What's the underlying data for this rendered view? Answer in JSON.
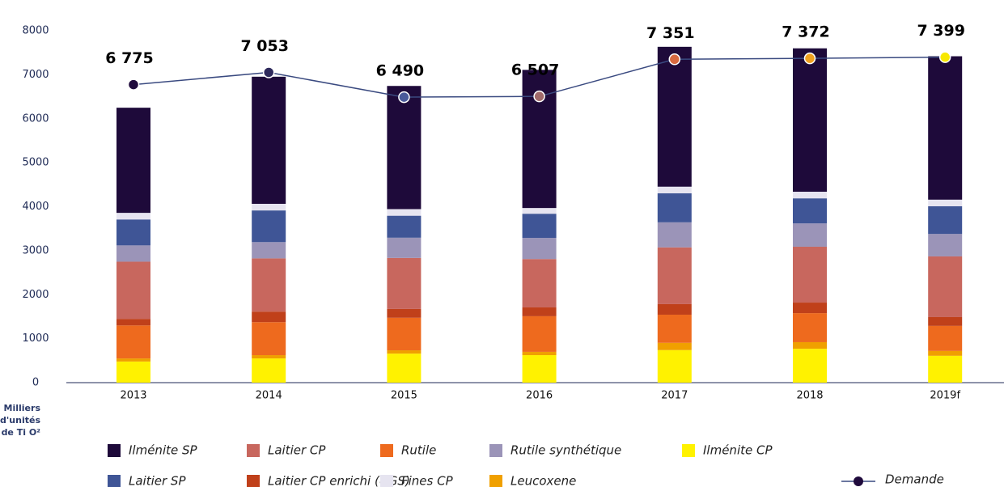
{
  "chart_data": {
    "type": "stacked_bar_line",
    "y_axis_label": [
      "Milliers",
      "d'unités",
      "de Ti O²"
    ],
    "categories": [
      "2013",
      "2014",
      "2015",
      "2016",
      "2017",
      "2018",
      "2019f"
    ],
    "ylim": [
      0,
      8000
    ],
    "yticks": [
      0,
      1000,
      2000,
      3000,
      4000,
      5000,
      6000,
      7000,
      8000
    ],
    "series": [
      {
        "name": "Ilménite CP",
        "color": "#fff200",
        "values": [
          480,
          550,
          660,
          625,
          740,
          770,
          610
        ]
      },
      {
        "name": "Leucoxene",
        "color": "#f0a000",
        "values": [
          70,
          75,
          75,
          75,
          165,
          150,
          110
        ]
      },
      {
        "name": "Rutile",
        "color": "#ee6a1e",
        "values": [
          750,
          750,
          740,
          810,
          640,
          660,
          570
        ]
      },
      {
        "name": "Laitier CP enrichi (UGS)",
        "color": "#c0401a",
        "values": [
          150,
          240,
          200,
          200,
          240,
          240,
          200
        ]
      },
      {
        "name": "Laitier CP",
        "color": "#c8675e",
        "values": [
          1300,
          1210,
          1160,
          1100,
          1290,
          1270,
          1380
        ]
      },
      {
        "name": "Rutile synthétique",
        "color": "#9b94b8",
        "values": [
          370,
          370,
          460,
          480,
          570,
          530,
          510
        ]
      },
      {
        "name": "Laitier SP",
        "color": "#3f5596",
        "values": [
          590,
          720,
          500,
          550,
          660,
          570,
          630
        ]
      },
      {
        "name": "Fines CP",
        "color": "#e6e4f0",
        "values": [
          150,
          150,
          150,
          130,
          150,
          150,
          150
        ]
      },
      {
        "name": "Ilménite SP",
        "color": "#1e0a3a",
        "values": [
          2390,
          2890,
          2800,
          3140,
          3180,
          3260,
          3260
        ]
      }
    ],
    "line": {
      "name": "Demande",
      "color": "#3a4a80",
      "values": [
        6775,
        7053,
        6490,
        6507,
        7351,
        7372,
        7399
      ],
      "value_labels": [
        "6 775",
        "7 053",
        "6 490",
        "6 507",
        "7 351",
        "7 372",
        "7 399"
      ],
      "point_colors": [
        "#1f0a3c",
        "#2f2a5c",
        "#4a5a9a",
        "#a06a6a",
        "#d86a40",
        "#f0a020",
        "#f8e800"
      ]
    }
  }
}
